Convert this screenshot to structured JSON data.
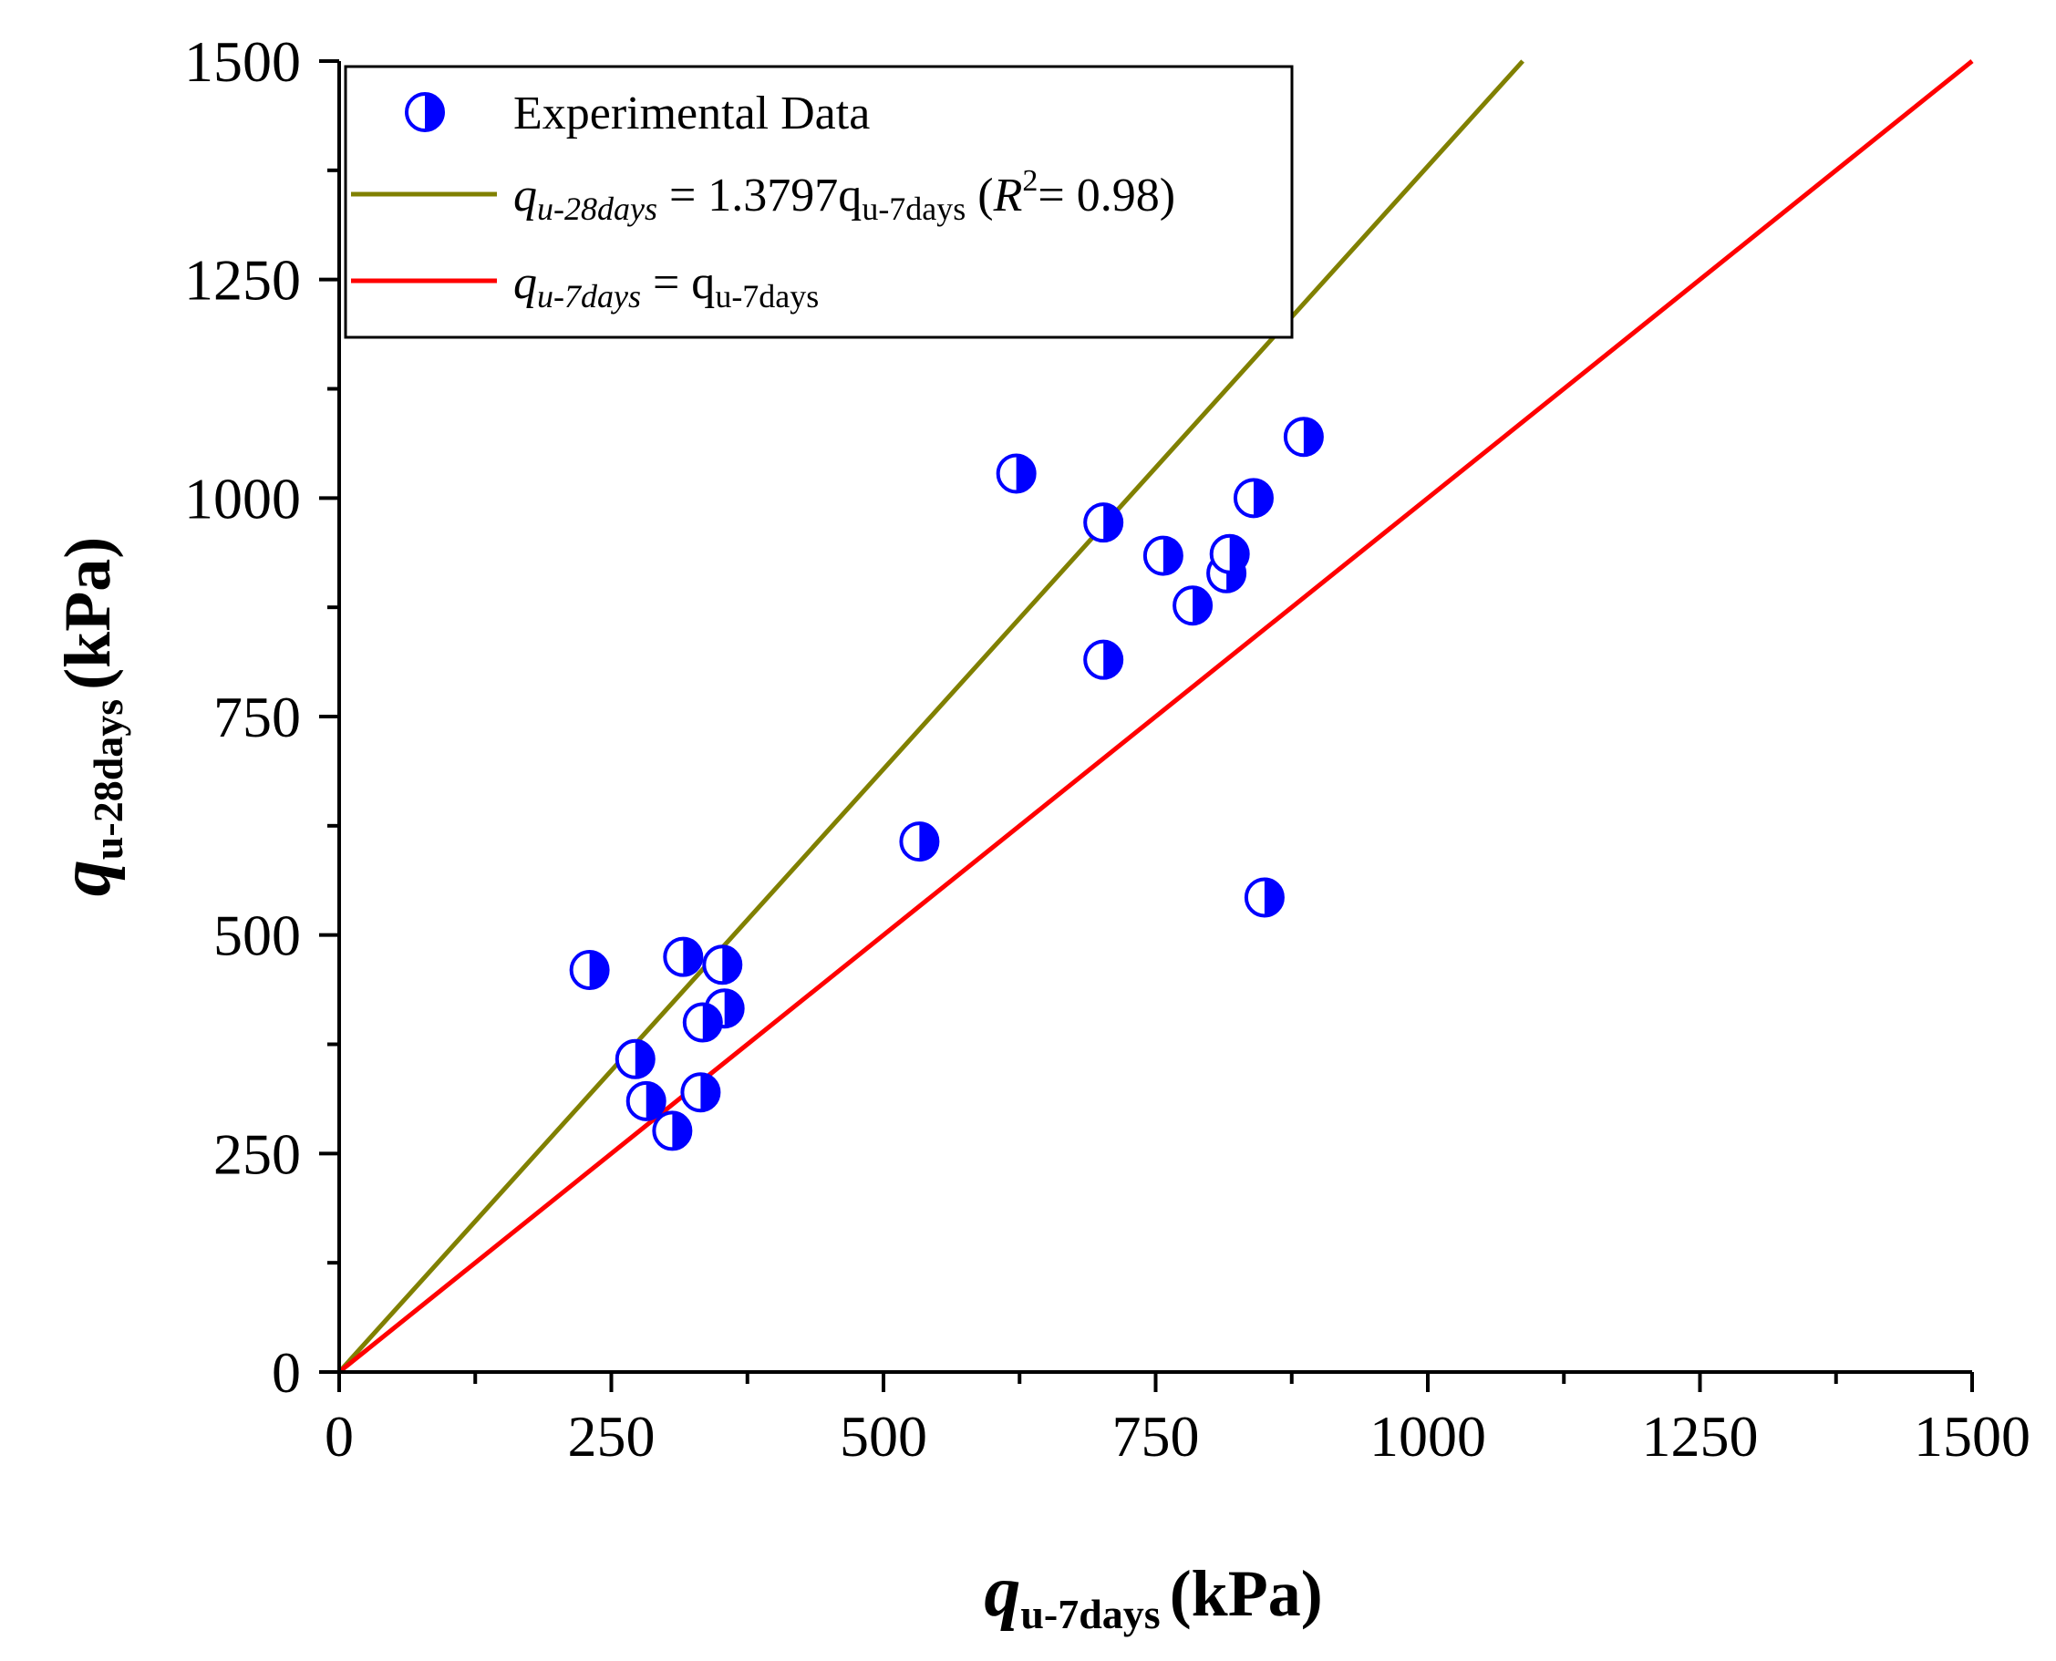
{
  "chart_data": {
    "type": "scatter",
    "xlabel": {
      "symbol": "q",
      "subscript": "u-7days",
      "unit": "(kPa)"
    },
    "ylabel": {
      "symbol": "q",
      "subscript": "u-28days",
      "unit": "(kPa)"
    },
    "xlim": [
      0,
      1500
    ],
    "ylim": [
      0,
      1500
    ],
    "xticks": [
      "0",
      "250",
      "500",
      "750",
      "1000",
      "1250",
      "1500"
    ],
    "yticks": [
      "0",
      "250",
      "500",
      "750",
      "1000",
      "1250",
      "1500"
    ],
    "series": [
      {
        "name": "Experimental Data",
        "kind": "scatter",
        "color": "#0000ff",
        "x": [
          230,
          272,
          282,
          316,
          352,
          354,
          306,
          332,
          334,
          533,
          622,
          702,
          702,
          757,
          784,
          815,
          818,
          840,
          850,
          886
        ],
        "y": [
          460,
          358,
          310,
          475,
          466,
          416,
          276,
          320,
          400,
          607,
          1028,
          972,
          815,
          934,
          877,
          914,
          936,
          1000,
          543,
          1070
        ]
      },
      {
        "name": "q_{u-28days} = 1.3797q_{u-7days} (R^2= 0.98)",
        "kind": "line",
        "color": "#808000",
        "slope": 1.3797,
        "x": [
          0,
          1087.2
        ],
        "y": [
          0,
          1500
        ]
      },
      {
        "name": "q_{u-7days} = q_{u-7days}",
        "kind": "line",
        "color": "#ff0000",
        "slope": 1,
        "x": [
          0,
          1500
        ],
        "y": [
          0,
          1500
        ]
      }
    ],
    "legend": {
      "position": "top-left",
      "entries": [
        {
          "text": "Experimental Data"
        },
        {
          "lhs_sym": "q",
          "lhs_sub": "u-28days",
          "eq": " = 1.3797q",
          "rhs_sub": "u-7days",
          "r2_open": " (",
          "r2_sym": "R",
          "r2_sup": "2",
          "r2_close": "= 0.98)"
        },
        {
          "lhs_sym": "q",
          "lhs_sub": "u-7days",
          "eq": " = q",
          "rhs_sub": "u-7days"
        }
      ]
    }
  }
}
